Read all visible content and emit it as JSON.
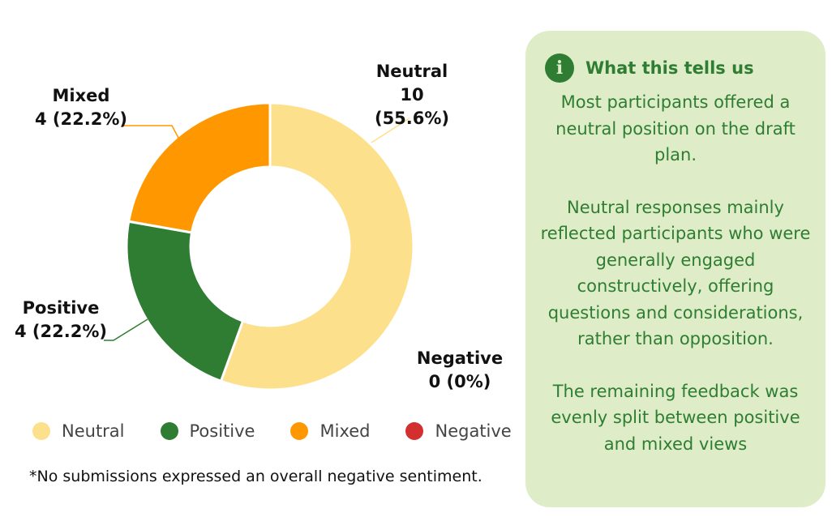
{
  "chart_data": {
    "type": "pie",
    "donut": true,
    "categories": [
      "Neutral",
      "Positive",
      "Mixed",
      "Negative"
    ],
    "values": [
      10,
      4,
      4,
      0
    ],
    "percent_labels": [
      "10 (55.6%)",
      "4 (22.2%)",
      "4 (22.2%)",
      "0 (0%)"
    ],
    "colors": [
      "#fde08b",
      "#2e7d32",
      "#ff9800",
      "#d32f2f"
    ],
    "legend_position": "bottom"
  },
  "note": "*No submissions expressed an overall negative sentiment.",
  "panel": {
    "title": "What this tells us",
    "icon": "info-icon",
    "paragraphs": [
      "Most participants offered a neutral position on the draft plan.",
      "Neutral responses mainly reflected participants who were generally engaged constructively, offering questions and considerations, rather than opposition.",
      "The remaining feedback was evenly split between positive and mixed views"
    ]
  }
}
